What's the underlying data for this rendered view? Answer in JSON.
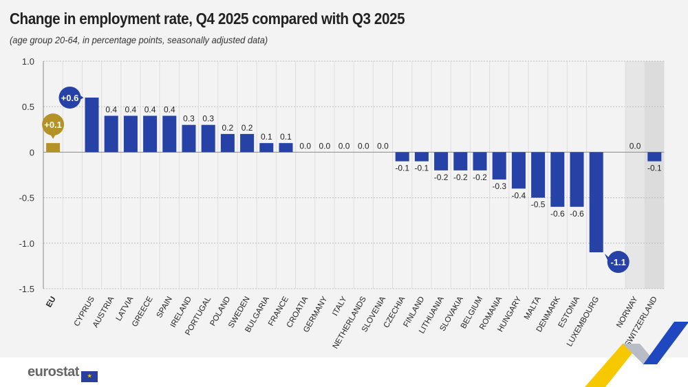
{
  "title": "Change in employment rate, Q4 2025 compared with Q3 2025",
  "subtitle": "(age group 20-64, in percentage points, seasonally adjusted data)",
  "logo": "eurostat",
  "colors": {
    "eu": "#b39227",
    "countries": "#2642a6",
    "bg": "#f3f3f3",
    "efta_shade": "#e6e6e6",
    "efta_shade_dark": "#dcdcdc"
  },
  "chart_data": {
    "type": "bar",
    "ylim": [
      -1.5,
      1.0
    ],
    "yticks": [
      1.0,
      0.5,
      0,
      -0.5,
      -1.0,
      -1.5
    ],
    "ytick_labels": [
      "1.0",
      "0.5",
      "0",
      "-0.5",
      "-1.0",
      "-1.5"
    ],
    "grid": true,
    "categories": [
      "EU",
      "CYPRUS",
      "AUSTRIA",
      "LATVIA",
      "GREECE",
      "SPAIN",
      "IRELAND",
      "PORTUGAL",
      "POLAND",
      "SWEDEN",
      "BULGARIA",
      "FRANCE",
      "CROATIA",
      "GERMANY",
      "ITALY",
      "NETHERLANDS",
      "SLOVENIA",
      "CZECHIA",
      "FINLAND",
      "LITHUANIA",
      "SLOVAKIA",
      "BELGIUM",
      "ROMANIA",
      "HUNGARY",
      "MALTA",
      "DENMARK",
      "ESTONIA",
      "LUXEMBOURG",
      "NORWAY",
      "SWITZERLAND"
    ],
    "values": [
      0.1,
      0.6,
      0.4,
      0.4,
      0.4,
      0.4,
      0.3,
      0.3,
      0.2,
      0.2,
      0.1,
      0.1,
      0.0,
      0.0,
      0.0,
      0.0,
      0.0,
      -0.1,
      -0.1,
      -0.2,
      -0.2,
      -0.2,
      -0.3,
      -0.4,
      -0.5,
      -0.6,
      -0.6,
      -1.1,
      0.0,
      -0.1
    ],
    "labels": [
      "+0.1",
      "+0.6",
      "0.4",
      "0.4",
      "0.4",
      "0.4",
      "0.3",
      "0.3",
      "0.2",
      "0.2",
      "0.1",
      "0.1",
      "0.0",
      "0.0",
      "0.0",
      "0.0",
      "0.0",
      "-0.1",
      "-0.1",
      "-0.2",
      "-0.2",
      "-0.2",
      "-0.3",
      "-0.4",
      "-0.5",
      "-0.6",
      "-0.6",
      "-1.1",
      "0.0",
      "-0.1"
    ],
    "highlighted": [
      "EU",
      "CYPRUS",
      "LUXEMBOURG"
    ]
  }
}
